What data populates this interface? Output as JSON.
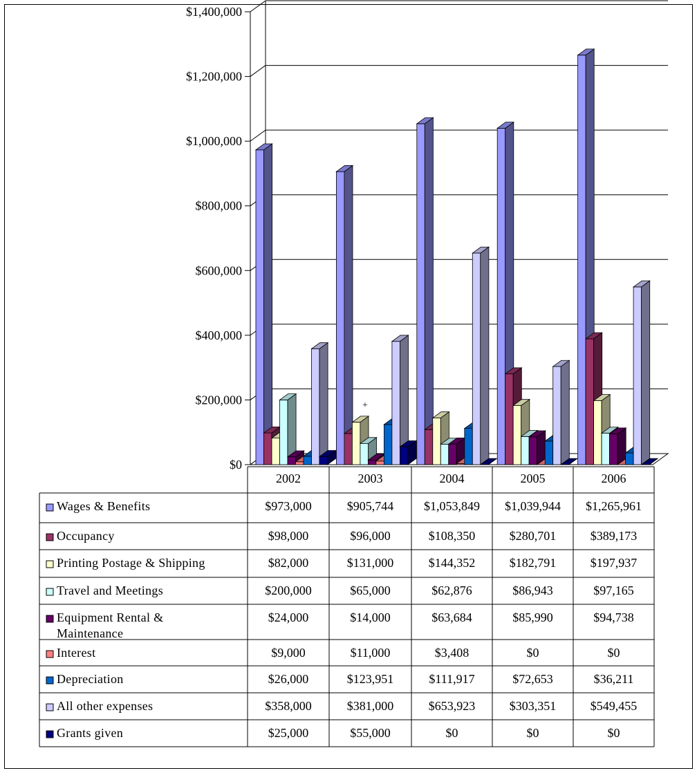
{
  "chart_data": {
    "type": "bar",
    "title": "",
    "xlabel": "",
    "ylabel": "",
    "ylim": [
      0,
      1400000
    ],
    "y_ticks": [
      "$0",
      "$200,000",
      "$400,000",
      "$600,000",
      "$800,000",
      "$1,000,000",
      "$1,200,000",
      "$1,400,000"
    ],
    "grid": true,
    "legend": "data table below chart",
    "categories": [
      "2002",
      "2003",
      "2004",
      "2005",
      "2006"
    ],
    "annotations": [
      "+"
    ],
    "series": [
      {
        "name": "Wages & Benefits",
        "values": [
          973000,
          905744,
          1053849,
          1039944,
          1265961
        ],
        "labels": [
          "$973,000",
          "$905,744",
          "$1,053,849",
          "$1,039,944",
          "$1,265,961"
        ],
        "color": "#9999FF"
      },
      {
        "name": "Occupancy",
        "values": [
          98000,
          96000,
          108350,
          280701,
          389173
        ],
        "labels": [
          "$98,000",
          "$96,000",
          "$108,350",
          "$280,701",
          "$389,173"
        ],
        "color": "#993366"
      },
      {
        "name": "Printing Postage & Shipping",
        "values": [
          82000,
          131000,
          144352,
          182791,
          197937
        ],
        "labels": [
          "$82,000",
          "$131,000",
          "$144,352",
          "$182,791",
          "$197,937"
        ],
        "color": "#FFFFCC"
      },
      {
        "name": "Travel and Meetings",
        "values": [
          200000,
          65000,
          62876,
          86943,
          97165
        ],
        "labels": [
          "$200,000",
          "$65,000",
          "$62,876",
          "$86,943",
          "$97,165"
        ],
        "color": "#CCFFFF"
      },
      {
        "name": "Equipment Rental & Maintenance",
        "values": [
          24000,
          14000,
          63684,
          85990,
          94738
        ],
        "labels": [
          "$24,000",
          "$14,000",
          "$63,684",
          "$85,990",
          "$94,738"
        ],
        "color": "#660066"
      },
      {
        "name": "Interest",
        "values": [
          9000,
          11000,
          3408,
          0,
          0
        ],
        "labels": [
          "$9,000",
          "$11,000",
          "$3,408",
          "$0",
          "$0"
        ],
        "color": "#FF8080"
      },
      {
        "name": "Depreciation",
        "values": [
          26000,
          123951,
          111917,
          72653,
          36211
        ],
        "labels": [
          "$26,000",
          "$123,951",
          "$111,917",
          "$72,653",
          "$36,211"
        ],
        "color": "#0066CC"
      },
      {
        "name": "All other expenses",
        "values": [
          358000,
          381000,
          653923,
          303351,
          549455
        ],
        "labels": [
          "$358,000",
          "$381,000",
          "$653,923",
          "$303,351",
          "$549,455"
        ],
        "color": "#CCCCFF"
      },
      {
        "name": "Grants given",
        "values": [
          25000,
          55000,
          0,
          0,
          0
        ],
        "labels": [
          "$25,000",
          "$55,000",
          "$0",
          "$0",
          "$0"
        ],
        "color": "#000080"
      }
    ]
  }
}
